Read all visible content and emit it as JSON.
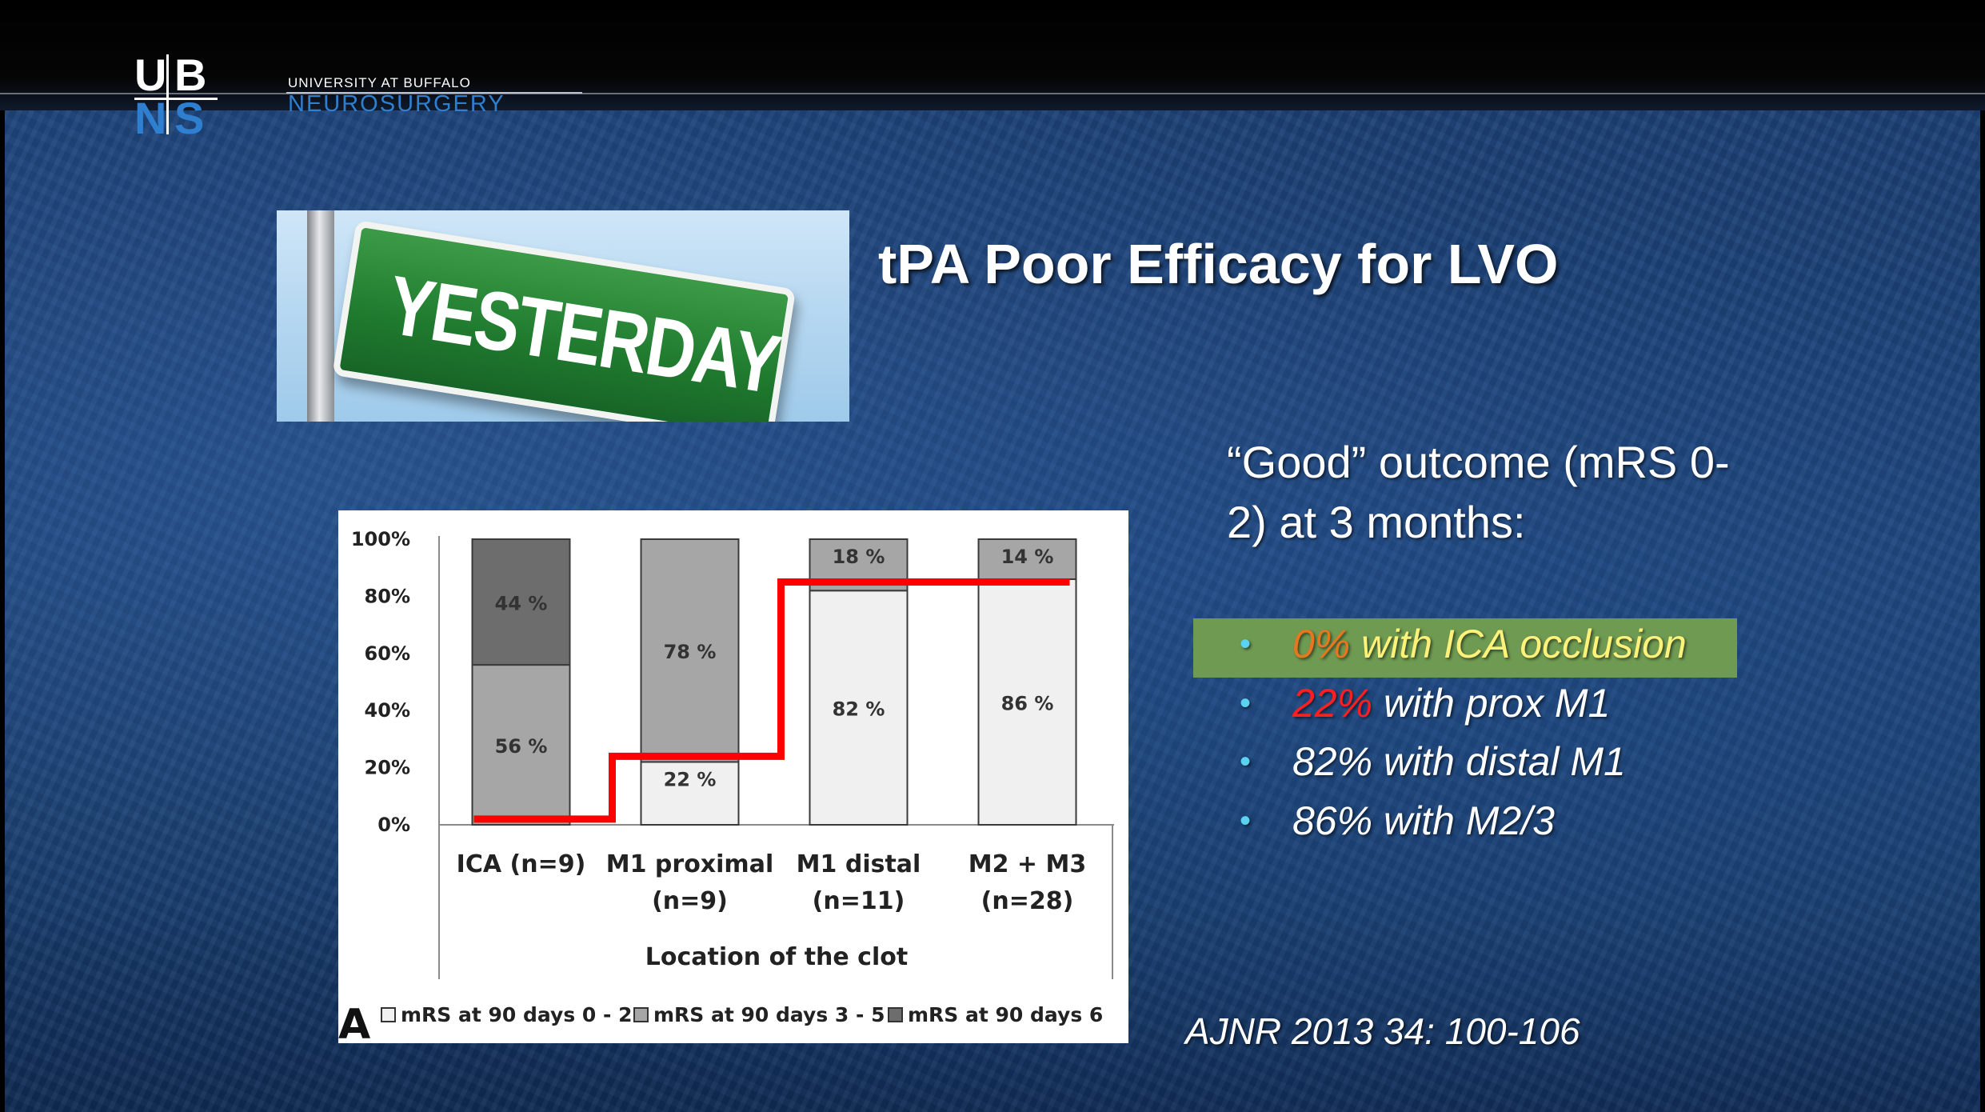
{
  "logo": {
    "letters": [
      "U",
      "B",
      "N",
      "S"
    ],
    "university": "UNIVERSITY AT BUFFALO",
    "department": "NEUROSURGERY"
  },
  "image": {
    "sign_text": "YESTERDAY"
  },
  "slide": {
    "title": "tPA Poor Efficacy for LVO",
    "outcome_heading": "“Good” outcome (mRS 0-2) at 3 months:",
    "bullets": [
      {
        "highlight": "0%",
        "rest": " with ICA occlusion",
        "highlight_color": "#e8761e",
        "rest_color": "#fff27a",
        "background": "#6f9a52"
      },
      {
        "highlight": "22%",
        "rest": " with prox M1",
        "highlight_color": "#ff1f1f",
        "rest_color": "#ffffff"
      },
      {
        "highlight": "82%",
        "rest": " with distal M1",
        "highlight_color": "#ffffff",
        "rest_color": "#ffffff"
      },
      {
        "highlight": "86%",
        "rest": " with M2/3",
        "highlight_color": "#ffffff",
        "rest_color": "#ffffff"
      }
    ],
    "citation": "AJNR 2013 34: 100-106"
  },
  "chart_data": {
    "type": "bar",
    "stacked": true,
    "panel_label": "A",
    "categories": [
      [
        "ICA (n=9)"
      ],
      [
        "M1 proximal",
        "(n=9)"
      ],
      [
        "M1 distal",
        "(n=11)"
      ],
      [
        "M2 + M3",
        "(n=28)"
      ]
    ],
    "xlabel": "Location of the clot",
    "ylabel": "",
    "ylim": [
      0,
      100
    ],
    "yticks": [
      "0%",
      "20%",
      "40%",
      "60%",
      "80%",
      "100%"
    ],
    "series": [
      {
        "name": "mRS at 90 days 0 - 2",
        "values": [
          0,
          22,
          82,
          86
        ],
        "labels": [
          "",
          "22 %",
          "82 %",
          "86 %"
        ],
        "color": "#f0f0f0"
      },
      {
        "name": "mRS at 90 days 3 - 5",
        "values": [
          56,
          78,
          18,
          14
        ],
        "labels": [
          "56 %",
          "78 %",
          "18 %",
          "14 %"
        ],
        "color": "#a6a6a6"
      },
      {
        "name": "mRS at 90 days 6",
        "values": [
          44,
          0,
          0,
          0
        ],
        "labels": [
          "44 %",
          "",
          "",
          ""
        ],
        "color": "#6d6d6d"
      }
    ],
    "overlay_line": {
      "color": "#ff0000",
      "values": [
        2,
        24,
        85,
        85
      ]
    },
    "legend_position": "bottom"
  }
}
